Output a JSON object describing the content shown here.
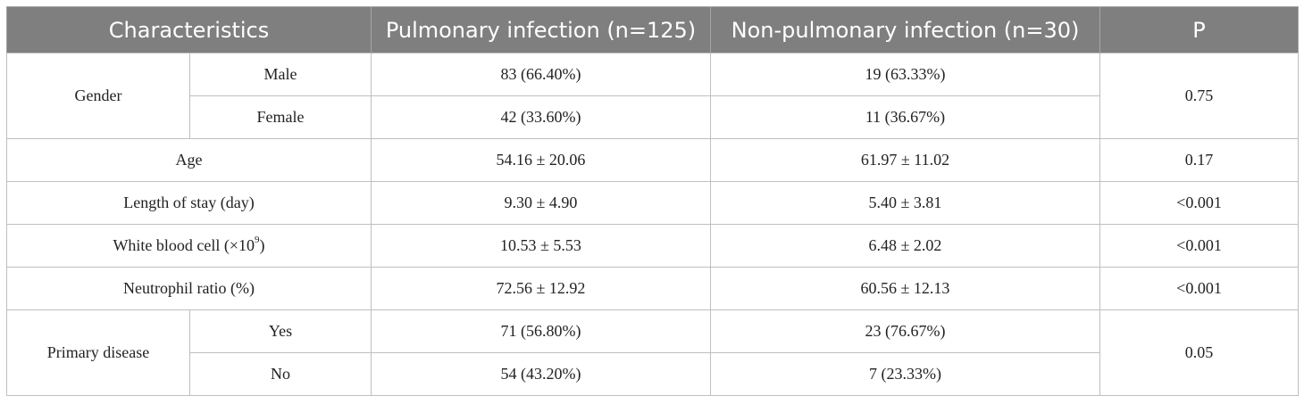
{
  "table": {
    "headers": [
      "Characteristics",
      "Pulmonary infection (n=125)",
      "Non-pulmonary infection (n=30)",
      "P"
    ],
    "gender": {
      "label": "Gender",
      "male": {
        "label": "Male",
        "pulmonary": "83 (66.40%)",
        "non_pulmonary": "19 (63.33%)"
      },
      "female": {
        "label": "Female",
        "pulmonary": "42 (33.60%)",
        "non_pulmonary": "11 (36.67%)"
      },
      "p": "0.75"
    },
    "age": {
      "label": "Age",
      "pulmonary": "54.16 ± 20.06",
      "non_pulmonary": "61.97 ± 11.02",
      "p": "0.17"
    },
    "length_of_stay": {
      "label": "Length of stay (day)",
      "pulmonary": "9.30 ± 4.90",
      "non_pulmonary": "5.40 ± 3.81",
      "p": "<0.001"
    },
    "wbc": {
      "label_main": "White blood cell (×10",
      "label_sup": "9",
      "label_end": ")",
      "pulmonary": "10.53 ± 5.53",
      "non_pulmonary": "6.48 ± 2.02",
      "p": "<0.001"
    },
    "neutrophil": {
      "label": "Neutrophil ratio (%)",
      "pulmonary": "72.56 ± 12.92",
      "non_pulmonary": "60.56 ± 12.13",
      "p": "<0.001"
    },
    "primary_disease": {
      "label": "Primary disease",
      "yes": {
        "label": "Yes",
        "pulmonary": "71 (56.80%)",
        "non_pulmonary": "23 (76.67%)"
      },
      "no": {
        "label": "No",
        "pulmonary": "54 (43.20%)",
        "non_pulmonary": "7 (23.33%)"
      },
      "p": "0.05"
    }
  },
  "colors": {
    "header_bg": "#7f7f7f",
    "header_text": "#ffffff",
    "grid": "#bfbfbf"
  }
}
